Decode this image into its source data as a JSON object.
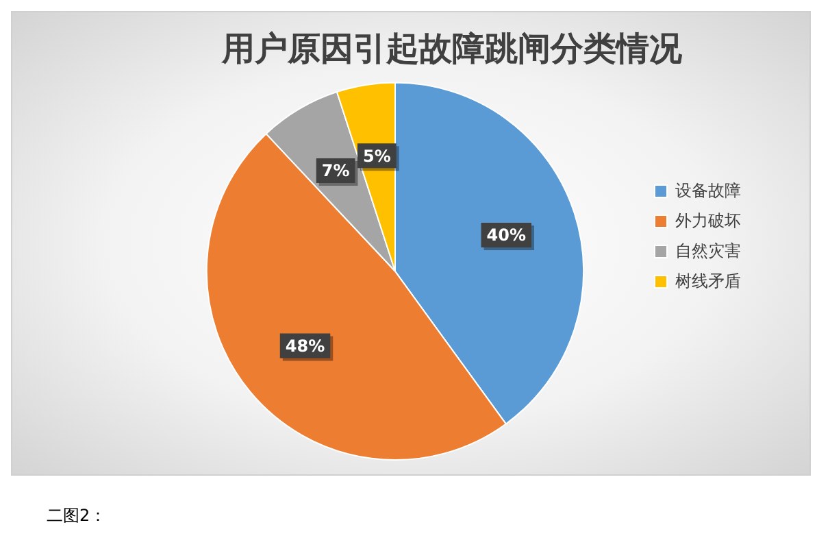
{
  "chart_data": {
    "type": "pie",
    "title": "用户原因引起故障跳闸分类情况",
    "categories": [
      "设备故障",
      "外力破坏",
      "自然灾害",
      "树线矛盾"
    ],
    "values": [
      40,
      48,
      7,
      5
    ],
    "colors": [
      "#5b9bd5",
      "#ed7d31",
      "#a5a5a5",
      "#ffc000"
    ],
    "value_labels": [
      "40%",
      "48%",
      "7%",
      "5%"
    ],
    "legend": "right",
    "annotations": [
      "二图2："
    ]
  }
}
